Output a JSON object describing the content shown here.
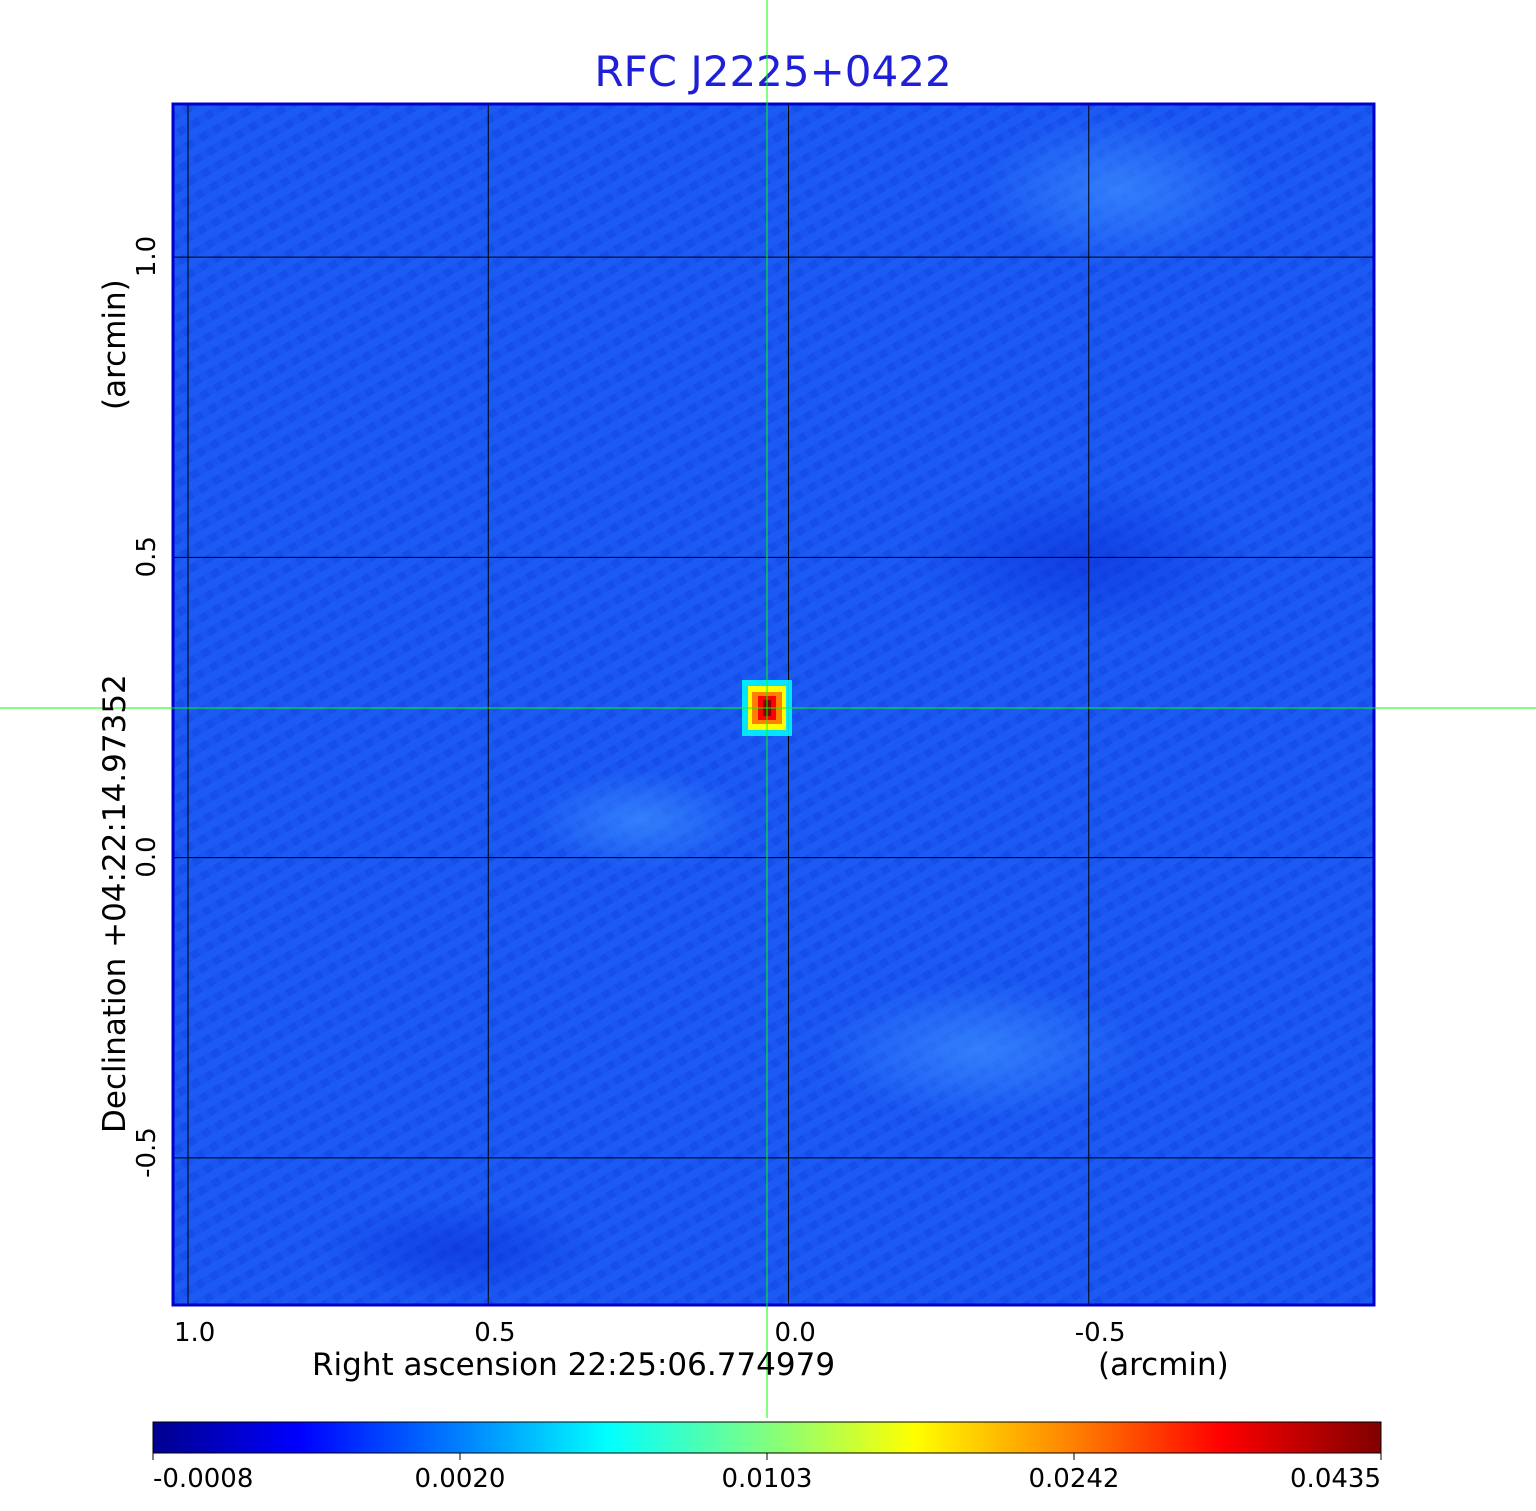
{
  "chart_data": {
    "type": "heatmap",
    "title": "RFC J2225+0422",
    "xlabel": "Right ascension  22:25:06.774979",
    "xunit": "(arcmin)",
    "ylabel": "Declination  +04:22:14.97352",
    "yunit": "(arcmin)",
    "x_ticks": [
      "1.0",
      "0.5",
      "0.0",
      "-0.5"
    ],
    "x_tick_values": [
      1.0,
      0.5,
      0.0,
      -0.5
    ],
    "y_ticks": [
      "1.0",
      "0.5",
      "0.0",
      "-0.5"
    ],
    "y_tick_values": [
      1.0,
      0.5,
      0.0,
      -0.5
    ],
    "xlim": [
      1.025,
      -0.975
    ],
    "ylim": [
      -0.745,
      1.255
    ],
    "grid": true,
    "crosshair": {
      "x": 0.032,
      "y": 0.25
    },
    "peak": {
      "x": 0.032,
      "y": 0.25,
      "value": 0.0435
    },
    "colorbar": {
      "ticks": [
        "-0.0008",
        "0.0020",
        "0.0103",
        "0.0242",
        "0.0435"
      ],
      "values": [
        -0.0008,
        0.002,
        0.0103,
        0.0242,
        0.0435
      ],
      "colormap": [
        "#00008f",
        "#0000ff",
        "#0080ff",
        "#00ffff",
        "#80ff80",
        "#ffff00",
        "#ff8000",
        "#ff0000",
        "#800000"
      ]
    },
    "colors": {
      "title": "#1f1fd8",
      "background": "#1a56f0",
      "crosshair": "#00ff00",
      "grid": "#000000"
    }
  }
}
